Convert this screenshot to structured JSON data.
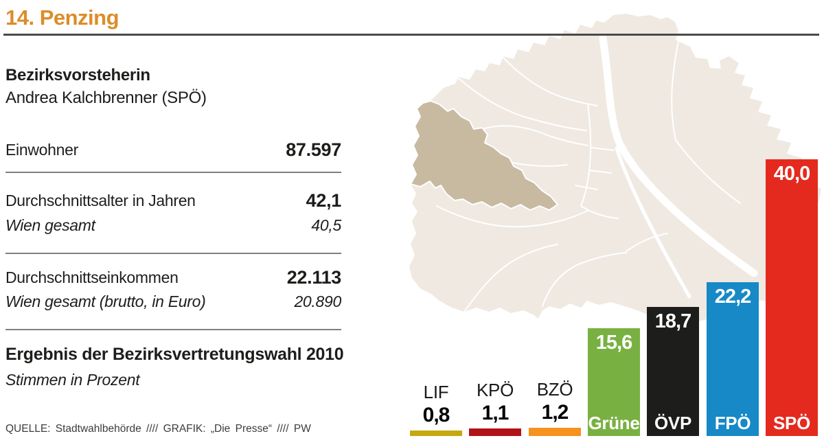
{
  "header": {
    "title": "14. Penzing",
    "accent_color": "#DD8C28"
  },
  "stats": {
    "leader_role": "Bezirksvorsteherin",
    "leader_name": "Andrea Kalchbrenner (SPÖ)",
    "rows": [
      {
        "label": "Einwohner",
        "value": "87.597"
      },
      {
        "label": "Durchschnittsalter in Jahren",
        "value": "42,1",
        "sublabel": "Wien gesamt",
        "subvalue": "40,5"
      },
      {
        "label": "Durchschnittseinkommen",
        "value": "22.113",
        "sublabel": "Wien gesamt (brutto, in Euro)",
        "subvalue": "20.890"
      }
    ]
  },
  "election": {
    "heading": "Ergebnis der Bezirksvertretungswahl 2010",
    "subheading": "Stimmen in Prozent"
  },
  "footer": {
    "credit": "QUELLE: Stadtwahlbehörde //// GRAFIK: „Die Presse“ //// PW"
  },
  "map": {
    "city": "Wien",
    "highlighted_district": "Penzing",
    "base_color": "#EFE9E1",
    "highlight_color": "#C8BAA1",
    "border_color": "#ffffff"
  },
  "chart_data": {
    "type": "bar",
    "title": "Ergebnis der Bezirksvertretungswahl 2010",
    "ylabel": "Stimmen in Prozent",
    "categories": [
      "LIF",
      "KPÖ",
      "BZÖ",
      "Grüne",
      "ÖVP",
      "FPÖ",
      "SPÖ"
    ],
    "values": [
      0.8,
      1.1,
      1.2,
      15.6,
      18.7,
      22.2,
      40.0
    ],
    "value_labels": [
      "0,8",
      "1,1",
      "1,2",
      "15,6",
      "18,7",
      "22,2",
      "40,0"
    ],
    "colors": [
      "#C7A80E",
      "#B01218",
      "#F6921E",
      "#79B042",
      "#1D1D1B",
      "#1689C6",
      "#E42A1E"
    ],
    "label_inside": [
      false,
      false,
      false,
      true,
      true,
      true,
      true
    ],
    "ylim": [
      0,
      40
    ],
    "grid": false,
    "legend": false
  }
}
